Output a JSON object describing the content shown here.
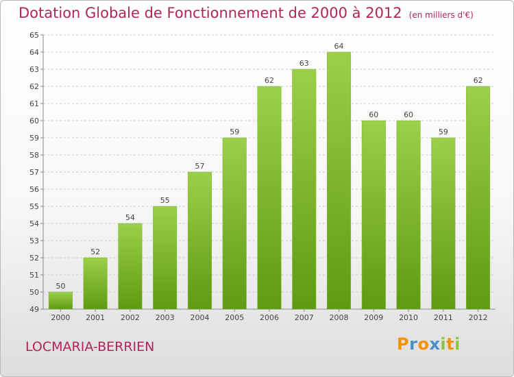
{
  "title": "Dotation Globale de Fonctionnement de 2000 à 2012",
  "unit_note": "(en milliers d'€)",
  "commune": "LOCMARIA-BERRIEN",
  "logo": {
    "text": "Proxiti",
    "letters": [
      {
        "ch": "P",
        "color": "#f39200"
      },
      {
        "ch": "r",
        "color": "#4a90c8"
      },
      {
        "ch": "o",
        "color": "#f39200"
      },
      {
        "ch": "x",
        "color": "#4a90c8"
      },
      {
        "ch": "i",
        "color": "#8dc63f"
      },
      {
        "ch": "t",
        "color": "#f39200"
      },
      {
        "ch": "i",
        "color": "#8dc63f"
      }
    ]
  },
  "colors": {
    "title": "#b0245a",
    "bar_top": "#9ccf4a",
    "bar_bottom": "#5e9a12",
    "grid": "#cccccc"
  },
  "chart_data": {
    "type": "bar",
    "categories": [
      "2000",
      "2001",
      "2002",
      "2003",
      "2004",
      "2005",
      "2006",
      "2007",
      "2008",
      "2009",
      "2010",
      "2011",
      "2012"
    ],
    "values": [
      50,
      52,
      54,
      55,
      57,
      59,
      62,
      63,
      64,
      60,
      60,
      59,
      62
    ],
    "ylim": [
      49,
      65
    ],
    "yticks": [
      49,
      50,
      51,
      52,
      53,
      54,
      55,
      56,
      57,
      58,
      59,
      60,
      61,
      62,
      63,
      64,
      65
    ],
    "grid": true,
    "xlabel": "",
    "ylabel": ""
  }
}
